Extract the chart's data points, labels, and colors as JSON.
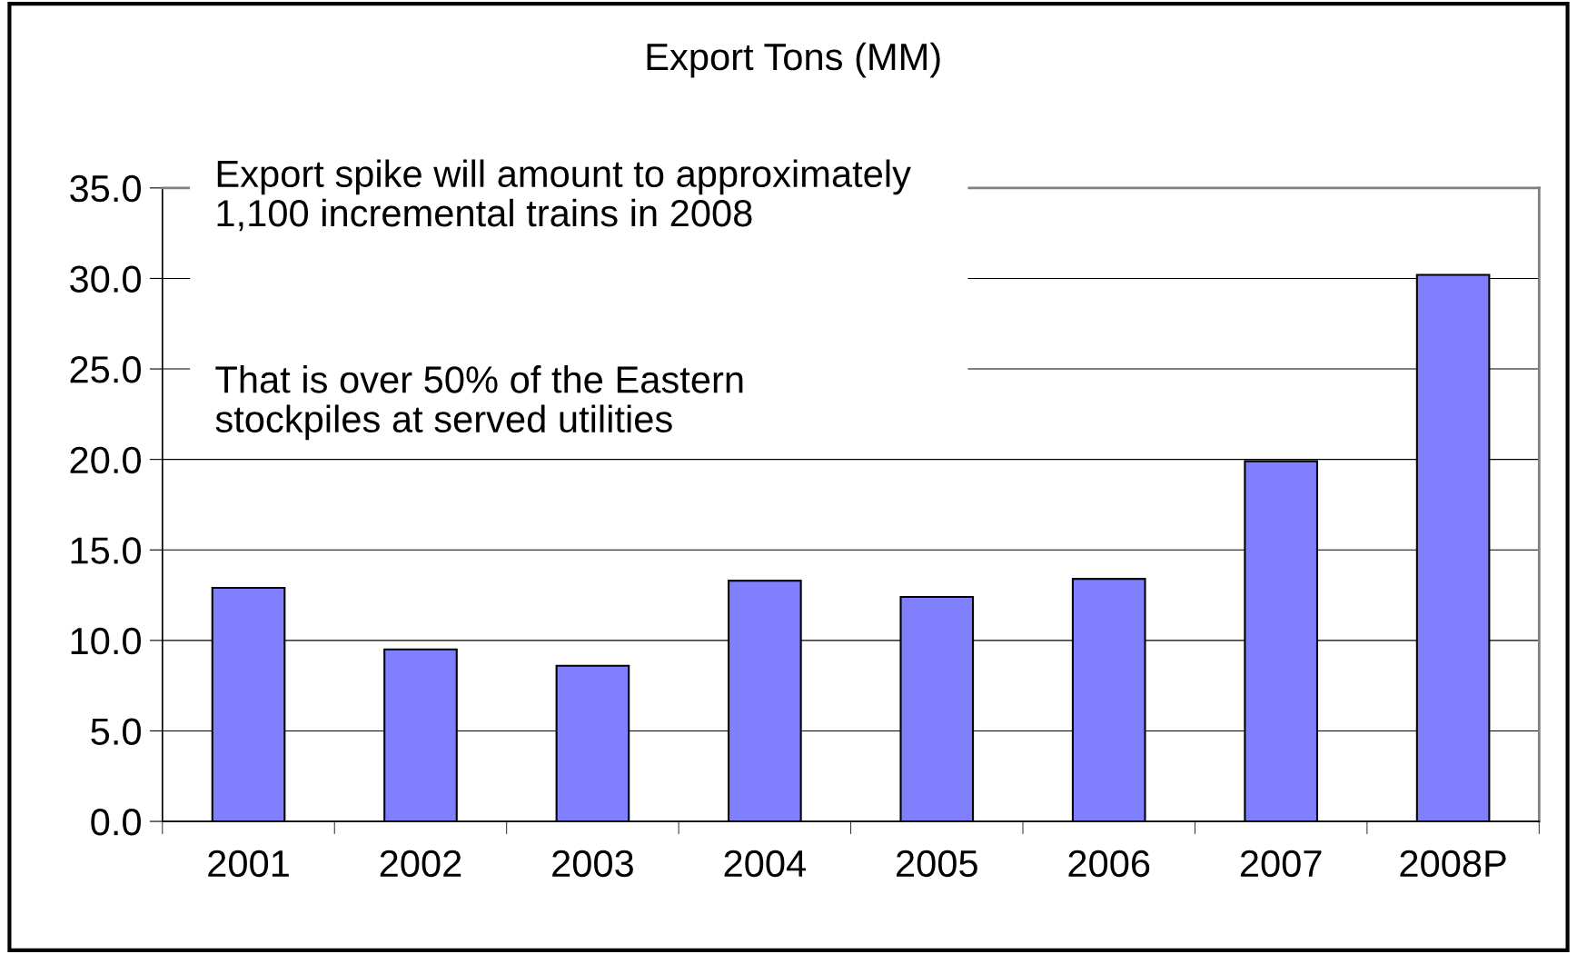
{
  "chart_data": {
    "type": "bar",
    "title": "Export Tons (MM)",
    "categories": [
      "2001",
      "2002",
      "2003",
      "2004",
      "2005",
      "2006",
      "2007",
      "2008P"
    ],
    "values": [
      12.9,
      9.5,
      8.6,
      13.3,
      12.4,
      13.4,
      19.9,
      30.2
    ],
    "color": "#8080ff",
    "ylim": [
      0,
      35
    ],
    "yticks": [
      {
        "value": 0,
        "label": "0.0"
      },
      {
        "value": 5,
        "label": "5.0"
      },
      {
        "value": 10,
        "label": "10.0"
      },
      {
        "value": 15,
        "label": "15.0"
      },
      {
        "value": 20,
        "label": "20.0"
      },
      {
        "value": 25,
        "label": "25.0"
      },
      {
        "value": 30,
        "label": "30.0"
      },
      {
        "value": 35,
        "label": "35.0"
      }
    ],
    "grid": "y",
    "annotations": [
      "Export spike will amount to approximately\n1,100 incremental trains in 2008",
      "That is over 50% of the Eastern\nstockpiles at served utilities"
    ]
  }
}
